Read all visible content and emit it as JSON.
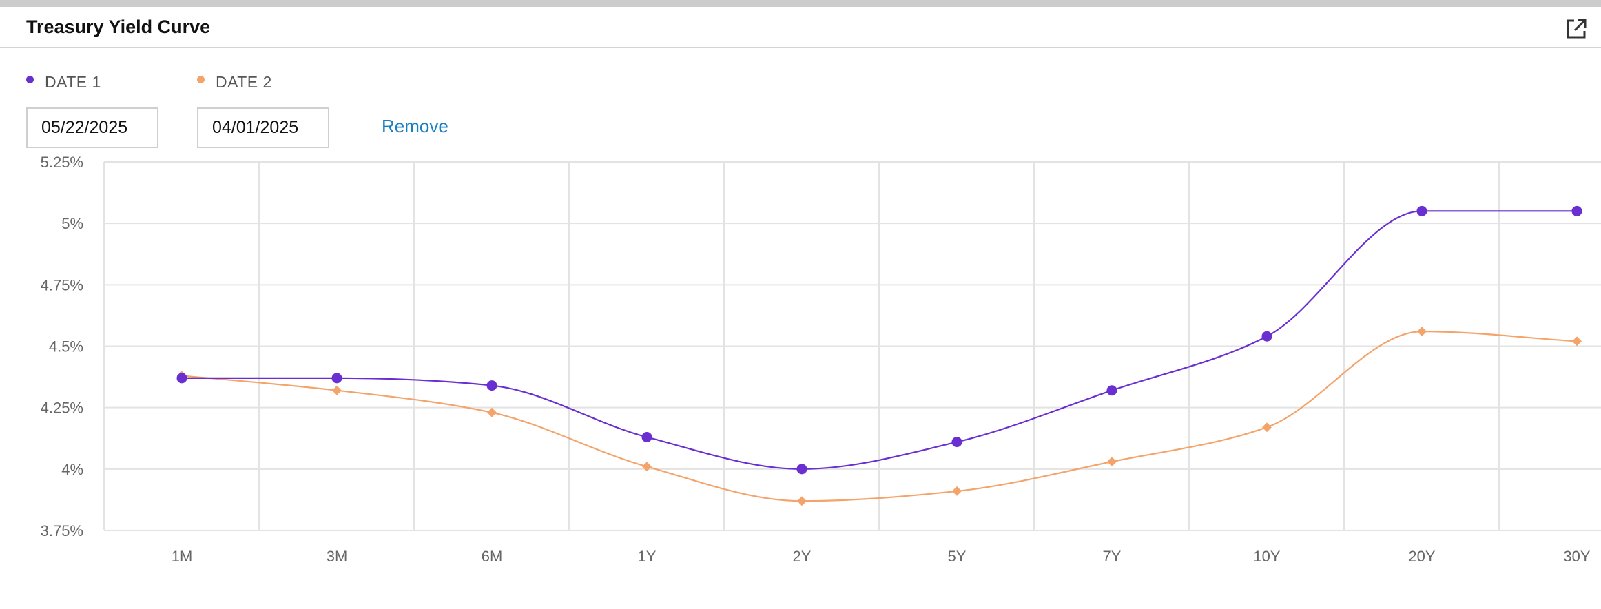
{
  "header": {
    "title": "Treasury Yield Curve"
  },
  "legend": [
    {
      "label": "DATE 1",
      "color": "#6a2fd0"
    },
    {
      "label": "DATE 2",
      "color": "#f4a46a"
    }
  ],
  "inputs": {
    "date1": "05/22/2025",
    "date2": "04/01/2025",
    "remove_label": "Remove"
  },
  "icons": {
    "popout": "external-link-icon"
  },
  "chart_data": {
    "type": "line",
    "title": "",
    "xlabel": "",
    "ylabel": "",
    "categories": [
      "1M",
      "3M",
      "6M",
      "1Y",
      "2Y",
      "5Y",
      "7Y",
      "10Y",
      "20Y",
      "30Y"
    ],
    "ylim": [
      3.75,
      5.25
    ],
    "yticks": [
      3.75,
      4,
      4.25,
      4.5,
      4.75,
      5,
      5.25
    ],
    "ytick_labels": [
      "3.75%",
      "4%",
      "4.25%",
      "4.5%",
      "4.75%",
      "5%",
      "5.25%"
    ],
    "grid": true,
    "legend_position": "top-left",
    "series": [
      {
        "name": "DATE 1",
        "color": "#6a2fd0",
        "marker": "circle",
        "values": [
          4.37,
          4.37,
          4.34,
          4.13,
          4.0,
          4.11,
          4.32,
          4.54,
          5.05,
          5.05
        ]
      },
      {
        "name": "DATE 2",
        "color": "#f4a46a",
        "marker": "diamond",
        "values": [
          4.38,
          4.32,
          4.23,
          4.01,
          3.87,
          3.91,
          4.03,
          4.17,
          4.56,
          4.52
        ]
      }
    ]
  }
}
